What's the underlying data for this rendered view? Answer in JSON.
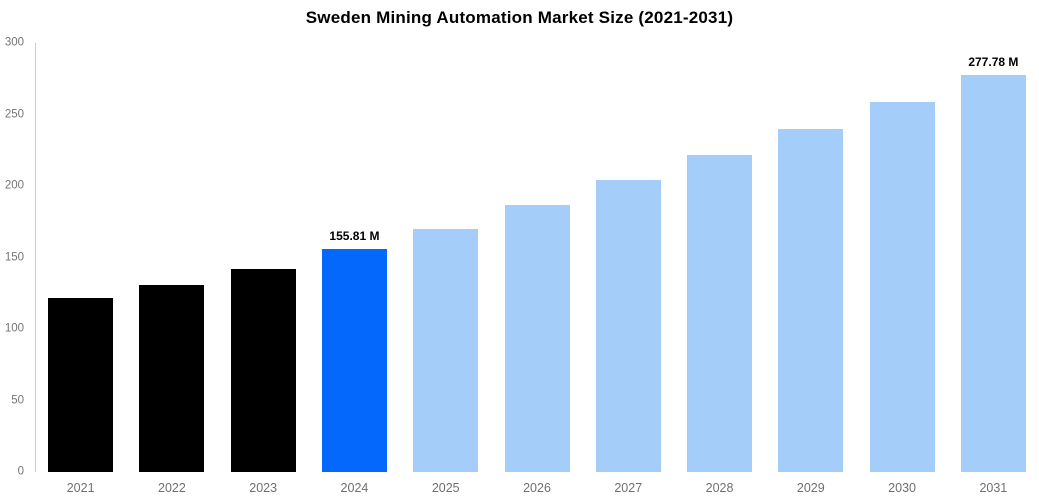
{
  "title": "Sweden Mining Automation Market Size (2021-2031)",
  "chart_data": {
    "type": "bar",
    "title": "Sweden Mining Automation Market Size (2021-2031)",
    "categories": [
      "2021",
      "2022",
      "2023",
      "2024",
      "2025",
      "2026",
      "2027",
      "2028",
      "2029",
      "2030",
      "2031"
    ],
    "values": [
      122,
      131,
      142,
      155.81,
      170,
      187,
      204,
      222,
      240,
      259,
      277.78
    ],
    "xlabel": "",
    "ylabel": "",
    "ylim": [
      0,
      300
    ],
    "yticks": [
      0,
      50,
      100,
      150,
      200,
      250,
      300
    ],
    "grid": false,
    "legend": false,
    "colors": {
      "historical": "#000000",
      "highlight": "#0568fc",
      "forecast": "#a5cdfa"
    },
    "color_roles": [
      "historical",
      "historical",
      "historical",
      "highlight",
      "forecast",
      "forecast",
      "forecast",
      "forecast",
      "forecast",
      "forecast",
      "forecast"
    ],
    "data_labels": [
      {
        "category": "2024",
        "text": "155.81 M"
      },
      {
        "category": "2031",
        "text": "277.78 M"
      }
    ],
    "axis_color": "#cccccc",
    "tick_label_color": "#757575"
  }
}
